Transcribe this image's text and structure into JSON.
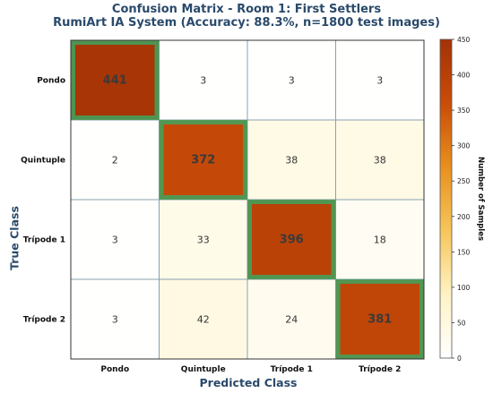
{
  "title": "Confusion Matrix - Room 1: First Settlers",
  "subtitle": "RumiArt IA System (Accuracy: 88.3%, n=1800 test images)",
  "chart_data": {
    "type": "heatmap",
    "title": "Confusion Matrix - Room 1: First Settlers",
    "subtitle": "RumiArt IA System (Accuracy: 88.3%, n=1800 test images)",
    "xlabel": "Predicted Class",
    "ylabel": "True Class",
    "x_categories": [
      "Pondo",
      "Quintuple",
      "Trípode 1",
      "Trípode 2"
    ],
    "y_categories": [
      "Pondo",
      "Quintuple",
      "Trípode 1",
      "Trípode 2"
    ],
    "matrix": [
      [
        441,
        3,
        3,
        3
      ],
      [
        2,
        372,
        38,
        38
      ],
      [
        3,
        33,
        396,
        18
      ],
      [
        3,
        42,
        24,
        381
      ]
    ],
    "diagonal_highlight_color": "#3fa35e",
    "colorbar": {
      "label": "Number of Samples",
      "range": [
        0,
        450
      ],
      "ticks": [
        0,
        50,
        100,
        150,
        200,
        250,
        300,
        350,
        400,
        450
      ],
      "colormap": [
        "#ffffff",
        "#fff3c4",
        "#f6c55a",
        "#e8901f",
        "#c94c08",
        "#a33206"
      ]
    },
    "grid": true
  }
}
